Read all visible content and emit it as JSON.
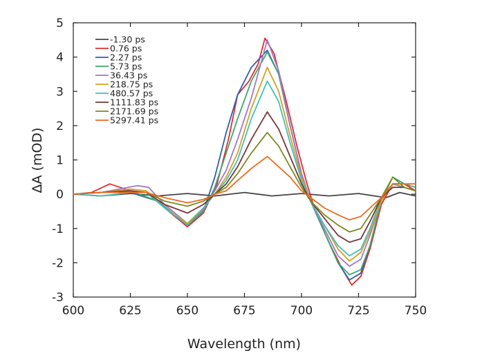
{
  "chart_data": {
    "type": "line",
    "title": "",
    "xlabel": "Wavelength (nm)",
    "ylabel": "ΔA (mOD)",
    "xlim": [
      600,
      750
    ],
    "ylim": [
      -3,
      5
    ],
    "xticks": [
      600,
      625,
      650,
      675,
      700,
      725,
      750
    ],
    "yticks": [
      -3,
      -2,
      -1,
      0,
      1,
      2,
      3,
      4,
      5
    ],
    "grid": false,
    "legend_position": "top-left",
    "series": [
      {
        "name": "-1.30 ps",
        "color": "#444444",
        "points": [
          [
            600,
            0
          ],
          [
            612,
            -0.05
          ],
          [
            625,
            0.02
          ],
          [
            637,
            -0.05
          ],
          [
            650,
            0.02
          ],
          [
            662,
            -0.05
          ],
          [
            675,
            0.05
          ],
          [
            687,
            -0.05
          ],
          [
            700,
            0.02
          ],
          [
            712,
            -0.05
          ],
          [
            725,
            0.02
          ],
          [
            737,
            -0.1
          ],
          [
            743,
            0.05
          ],
          [
            750,
            -0.05
          ]
        ]
      },
      {
        "name": "0.76 ps",
        "color": "#e32b2b",
        "points": [
          [
            600,
            0
          ],
          [
            608,
            0.05
          ],
          [
            616,
            0.3
          ],
          [
            625,
            0.1
          ],
          [
            632,
            0.05
          ],
          [
            640,
            -0.4
          ],
          [
            650,
            -0.95
          ],
          [
            657,
            -0.55
          ],
          [
            663,
            0.3
          ],
          [
            668,
            1.6
          ],
          [
            672,
            2.9
          ],
          [
            677,
            3.3
          ],
          [
            681,
            3.8
          ],
          [
            684,
            4.55
          ],
          [
            688,
            4.1
          ],
          [
            693,
            2.8
          ],
          [
            698,
            1.4
          ],
          [
            702,
            0.4
          ],
          [
            706,
            -0.5
          ],
          [
            712,
            -1.4
          ],
          [
            718,
            -2.2
          ],
          [
            722,
            -2.65
          ],
          [
            726,
            -2.4
          ],
          [
            730,
            -1.6
          ],
          [
            735,
            -0.3
          ],
          [
            740,
            0.3
          ],
          [
            745,
            0.3
          ],
          [
            750,
            0.1
          ]
        ]
      },
      {
        "name": "2.27 ps",
        "color": "#2b5fb0",
        "points": [
          [
            600,
            0
          ],
          [
            612,
            0.05
          ],
          [
            625,
            0.05
          ],
          [
            637,
            -0.2
          ],
          [
            650,
            -0.9
          ],
          [
            657,
            -0.5
          ],
          [
            662,
            0.5
          ],
          [
            667,
            1.8
          ],
          [
            672,
            2.9
          ],
          [
            678,
            3.7
          ],
          [
            685,
            4.2
          ],
          [
            690,
            3.5
          ],
          [
            695,
            2.0
          ],
          [
            700,
            0.6
          ],
          [
            704,
            -0.2
          ],
          [
            710,
            -1.1
          ],
          [
            716,
            -2.0
          ],
          [
            721,
            -2.5
          ],
          [
            726,
            -2.3
          ],
          [
            730,
            -1.5
          ],
          [
            735,
            -0.2
          ],
          [
            740,
            0.3
          ],
          [
            745,
            0.2
          ],
          [
            750,
            0.1
          ]
        ]
      },
      {
        "name": "5.73 ps",
        "color": "#3ca86b",
        "points": [
          [
            600,
            0
          ],
          [
            612,
            0.05
          ],
          [
            625,
            0.1
          ],
          [
            637,
            -0.2
          ],
          [
            650,
            -0.9
          ],
          [
            657,
            -0.5
          ],
          [
            662,
            0.2
          ],
          [
            667,
            1.2
          ],
          [
            672,
            2.2
          ],
          [
            678,
            3.3
          ],
          [
            685,
            4.15
          ],
          [
            690,
            3.5
          ],
          [
            695,
            2.0
          ],
          [
            700,
            0.6
          ],
          [
            704,
            -0.2
          ],
          [
            710,
            -1.1
          ],
          [
            716,
            -2.0
          ],
          [
            721,
            -2.35
          ],
          [
            726,
            -2.2
          ],
          [
            730,
            -1.5
          ],
          [
            735,
            -0.2
          ],
          [
            740,
            0.5
          ],
          [
            745,
            0.3
          ],
          [
            750,
            0.2
          ]
        ]
      },
      {
        "name": "36.43 ps",
        "color": "#a178c8",
        "points": [
          [
            600,
            0
          ],
          [
            612,
            0.05
          ],
          [
            620,
            0.15
          ],
          [
            628,
            0.25
          ],
          [
            633,
            0.2
          ],
          [
            640,
            -0.3
          ],
          [
            650,
            -0.85
          ],
          [
            657,
            -0.45
          ],
          [
            662,
            0.1
          ],
          [
            667,
            0.7
          ],
          [
            672,
            1.6
          ],
          [
            678,
            2.8
          ],
          [
            685,
            4.5
          ],
          [
            690,
            3.6
          ],
          [
            695,
            2.0
          ],
          [
            700,
            0.6
          ],
          [
            704,
            -0.2
          ],
          [
            710,
            -1.0
          ],
          [
            716,
            -1.8
          ],
          [
            721,
            -2.1
          ],
          [
            726,
            -1.9
          ],
          [
            730,
            -1.2
          ],
          [
            735,
            -0.2
          ],
          [
            740,
            0.3
          ],
          [
            745,
            0.2
          ],
          [
            750,
            0.1
          ]
        ]
      },
      {
        "name": "218.75 ps",
        "color": "#d4a020",
        "points": [
          [
            600,
            0
          ],
          [
            612,
            0.05
          ],
          [
            625,
            0.15
          ],
          [
            632,
            0.1
          ],
          [
            640,
            -0.4
          ],
          [
            650,
            -0.85
          ],
          [
            657,
            -0.4
          ],
          [
            662,
            0
          ],
          [
            667,
            0.5
          ],
          [
            672,
            1.2
          ],
          [
            678,
            2.5
          ],
          [
            685,
            3.7
          ],
          [
            690,
            3.0
          ],
          [
            695,
            1.7
          ],
          [
            700,
            0.5
          ],
          [
            704,
            -0.2
          ],
          [
            710,
            -0.9
          ],
          [
            716,
            -1.6
          ],
          [
            721,
            -1.95
          ],
          [
            726,
            -1.7
          ],
          [
            730,
            -1.1
          ],
          [
            735,
            -0.2
          ],
          [
            740,
            0.3
          ],
          [
            745,
            0.2
          ],
          [
            750,
            0.1
          ]
        ]
      },
      {
        "name": "480.57 ps",
        "color": "#3fbfc0",
        "points": [
          [
            600,
            0
          ],
          [
            612,
            -0.05
          ],
          [
            625,
            0.05
          ],
          [
            632,
            0.05
          ],
          [
            640,
            -0.4
          ],
          [
            650,
            -0.9
          ],
          [
            657,
            -0.4
          ],
          [
            662,
            0
          ],
          [
            667,
            0.4
          ],
          [
            672,
            1.0
          ],
          [
            678,
            2.2
          ],
          [
            685,
            3.3
          ],
          [
            690,
            2.7
          ],
          [
            695,
            1.5
          ],
          [
            700,
            0.4
          ],
          [
            704,
            -0.2
          ],
          [
            710,
            -0.9
          ],
          [
            716,
            -1.5
          ],
          [
            721,
            -1.8
          ],
          [
            726,
            -1.6
          ],
          [
            730,
            -1.0
          ],
          [
            735,
            -0.1
          ],
          [
            740,
            0.3
          ],
          [
            745,
            0.2
          ],
          [
            750,
            0.1
          ]
        ]
      },
      {
        "name": "1111.83 ps",
        "color": "#7a3535",
        "points": [
          [
            600,
            0
          ],
          [
            612,
            0.05
          ],
          [
            625,
            0.1
          ],
          [
            632,
            0.05
          ],
          [
            640,
            -0.3
          ],
          [
            650,
            -0.55
          ],
          [
            657,
            -0.3
          ],
          [
            662,
            0
          ],
          [
            667,
            0.3
          ],
          [
            672,
            0.8
          ],
          [
            678,
            1.6
          ],
          [
            685,
            2.4
          ],
          [
            690,
            1.9
          ],
          [
            695,
            1.1
          ],
          [
            700,
            0.3
          ],
          [
            704,
            -0.2
          ],
          [
            710,
            -0.7
          ],
          [
            716,
            -1.2
          ],
          [
            721,
            -1.4
          ],
          [
            726,
            -1.3
          ],
          [
            730,
            -0.8
          ],
          [
            735,
            -0.1
          ],
          [
            740,
            0.2
          ],
          [
            745,
            0.2
          ],
          [
            750,
            0.1
          ]
        ]
      },
      {
        "name": "2171.69 ps",
        "color": "#7c8a1e",
        "points": [
          [
            600,
            0
          ],
          [
            612,
            0.05
          ],
          [
            625,
            0.05
          ],
          [
            632,
            0.05
          ],
          [
            640,
            -0.2
          ],
          [
            650,
            -0.35
          ],
          [
            657,
            -0.2
          ],
          [
            662,
            0
          ],
          [
            667,
            0.2
          ],
          [
            672,
            0.6
          ],
          [
            678,
            1.2
          ],
          [
            685,
            1.8
          ],
          [
            690,
            1.4
          ],
          [
            695,
            0.8
          ],
          [
            700,
            0.2
          ],
          [
            704,
            -0.2
          ],
          [
            710,
            -0.6
          ],
          [
            716,
            -0.9
          ],
          [
            721,
            -1.1
          ],
          [
            726,
            -1.0
          ],
          [
            730,
            -0.6
          ],
          [
            735,
            -0.1
          ],
          [
            740,
            0.5
          ],
          [
            745,
            0.2
          ],
          [
            750,
            0.1
          ]
        ]
      },
      {
        "name": "5297.41 ps",
        "color": "#ef6a1c",
        "points": [
          [
            600,
            0
          ],
          [
            612,
            0.05
          ],
          [
            625,
            0.05
          ],
          [
            632,
            0.05
          ],
          [
            640,
            -0.1
          ],
          [
            650,
            -0.25
          ],
          [
            657,
            -0.15
          ],
          [
            662,
            0
          ],
          [
            667,
            0.1
          ],
          [
            672,
            0.4
          ],
          [
            678,
            0.75
          ],
          [
            685,
            1.1
          ],
          [
            690,
            0.8
          ],
          [
            695,
            0.5
          ],
          [
            700,
            0.1
          ],
          [
            704,
            -0.1
          ],
          [
            710,
            -0.4
          ],
          [
            716,
            -0.6
          ],
          [
            721,
            -0.75
          ],
          [
            726,
            -0.65
          ],
          [
            730,
            -0.4
          ],
          [
            735,
            -0.1
          ],
          [
            740,
            0.3
          ],
          [
            745,
            0.3
          ],
          [
            750,
            0.3
          ]
        ]
      }
    ]
  }
}
